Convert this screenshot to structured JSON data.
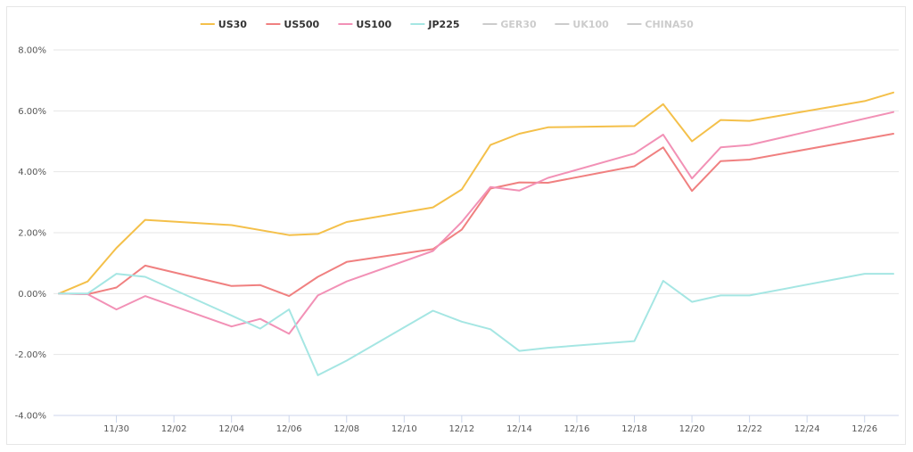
{
  "chart_data": {
    "type": "line",
    "x_tick_labels": [
      "11/30",
      "12/02",
      "12/04",
      "12/06",
      "12/08",
      "12/10",
      "12/12",
      "12/14",
      "12/16",
      "12/18",
      "12/20",
      "12/22",
      "12/24",
      "12/26"
    ],
    "y_tick_labels": [
      "8.00%",
      "6.00%",
      "4.00%",
      "2.00%",
      "0.00%",
      "-2.00%",
      "-4.00%"
    ],
    "ylim": [
      -4,
      8
    ],
    "x_range": [
      "11/28",
      "12/27"
    ],
    "grid": "horizontal",
    "legend_position": "top-center",
    "series": [
      {
        "name": "US30",
        "color": "#f4c04a",
        "active": true,
        "x": [
          "11/28",
          "11/29",
          "11/30",
          "12/01",
          "12/04",
          "12/06",
          "12/07",
          "12/08",
          "12/11",
          "12/12",
          "12/13",
          "12/14",
          "12/15",
          "12/18",
          "12/19",
          "12/20",
          "12/21",
          "12/22",
          "12/26",
          "12/27"
        ],
        "y": [
          0.0,
          0.4,
          1.5,
          2.42,
          2.25,
          1.92,
          1.96,
          2.35,
          2.83,
          3.42,
          4.88,
          5.25,
          5.46,
          5.5,
          6.22,
          5.0,
          5.7,
          5.67,
          6.32,
          6.6
        ]
      },
      {
        "name": "US500",
        "color": "#f08080",
        "active": true,
        "x": [
          "11/28",
          "11/29",
          "11/30",
          "12/01",
          "12/04",
          "12/05",
          "12/06",
          "12/07",
          "12/08",
          "12/11",
          "12/12",
          "12/13",
          "12/14",
          "12/15",
          "12/18",
          "12/19",
          "12/20",
          "12/21",
          "12/22",
          "12/27"
        ],
        "y": [
          0.0,
          -0.02,
          0.2,
          0.92,
          0.25,
          0.28,
          -0.08,
          0.55,
          1.04,
          1.46,
          2.1,
          3.45,
          3.65,
          3.64,
          4.18,
          4.8,
          3.37,
          4.35,
          4.4,
          5.25
        ]
      },
      {
        "name": "US100",
        "color": "#f291b6",
        "active": true,
        "x": [
          "11/28",
          "11/29",
          "11/30",
          "12/01",
          "12/04",
          "12/05",
          "12/06",
          "12/07",
          "12/08",
          "12/11",
          "12/12",
          "12/13",
          "12/14",
          "12/15",
          "12/18",
          "12/19",
          "12/20",
          "12/21",
          "12/22",
          "12/27"
        ],
        "y": [
          0.0,
          -0.02,
          -0.52,
          -0.08,
          -1.08,
          -0.83,
          -1.32,
          -0.06,
          0.4,
          1.4,
          2.35,
          3.5,
          3.38,
          3.8,
          4.6,
          5.22,
          3.78,
          4.8,
          4.88,
          5.96
        ]
      },
      {
        "name": "JP225",
        "color": "#a5e6e3",
        "active": true,
        "x": [
          "11/28",
          "11/29",
          "11/30",
          "12/01",
          "12/04",
          "12/05",
          "12/06",
          "12/07",
          "12/08",
          "12/11",
          "12/12",
          "12/13",
          "12/14",
          "12/15",
          "12/18",
          "12/19",
          "12/20",
          "12/21",
          "12/22",
          "12/26",
          "12/27"
        ],
        "y": [
          0.0,
          0.0,
          0.65,
          0.55,
          -0.72,
          -1.15,
          -0.52,
          -2.68,
          -2.2,
          -0.56,
          -0.92,
          -1.17,
          -1.88,
          -1.78,
          -1.56,
          0.42,
          -0.27,
          -0.06,
          -0.06,
          0.65,
          0.65
        ]
      },
      {
        "name": "GER30",
        "color": "#cccccc",
        "active": false
      },
      {
        "name": "UK100",
        "color": "#cccccc",
        "active": false
      },
      {
        "name": "CHINA50",
        "color": "#cccccc",
        "active": false
      }
    ]
  },
  "colors": {
    "grid": "#e6e6e6",
    "axis": "#ccd6eb",
    "tick_text": "#555555",
    "legend_active_text": "#333333",
    "legend_inactive_text": "#cccccc"
  }
}
